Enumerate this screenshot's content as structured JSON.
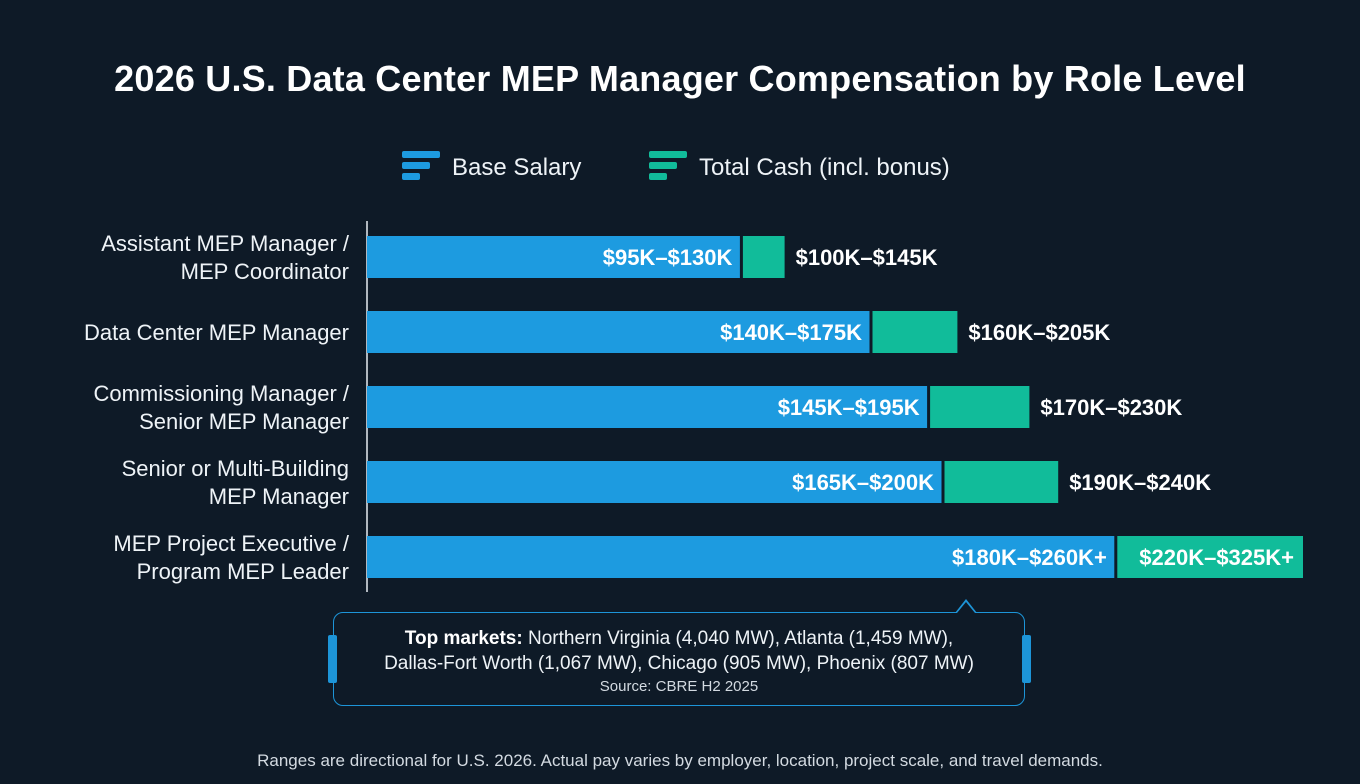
{
  "title": "2026 U.S. Data Center MEP Manager Compensation by Role Level",
  "colors": {
    "background": "#0e1a27",
    "base_salary": "#1d9be0",
    "total_cash": "#11bc9a",
    "box_border": "#1d95d8"
  },
  "legend": [
    {
      "label": "Base Salary",
      "icon": "bar-stack-icon",
      "color": "#1d9be0"
    },
    {
      "label": "Total Cash (incl. bonus)",
      "icon": "bar-stack-icon",
      "color": "#11bc9a"
    }
  ],
  "chart_data": {
    "type": "bar",
    "orientation": "horizontal",
    "unit": "USD thousands",
    "grid": false,
    "legend_placement": "top-center",
    "categories": [
      [
        "Assistant MEP Manager /",
        "MEP Coordinator"
      ],
      [
        "Data Center MEP Manager"
      ],
      [
        "Commissioning Manager /",
        "Senior MEP Manager"
      ],
      [
        "Senior or Multi-Building",
        "MEP Manager"
      ],
      [
        "MEP Project Executive /",
        "Program MEP Leader"
      ]
    ],
    "series": [
      {
        "name": "Base Salary",
        "ranges": [
          [
            95,
            130
          ],
          [
            140,
            175
          ],
          [
            145,
            195
          ],
          [
            165,
            200
          ],
          [
            180,
            260
          ]
        ],
        "labels": [
          "$95K–$130K",
          "$140K–$175K",
          "$145K–$195K",
          "$165K–$200K",
          "$180K–$260K+"
        ]
      },
      {
        "name": "Total Cash (incl. bonus)",
        "ranges": [
          [
            100,
            145
          ],
          [
            160,
            205
          ],
          [
            170,
            230
          ],
          [
            190,
            240
          ],
          [
            220,
            325
          ]
        ],
        "labels": [
          "$100K–$145K",
          "$160K–$205K",
          "$170K–$230K",
          "$190K–$240K",
          "$220K–$325K+"
        ]
      }
    ]
  },
  "markets": {
    "heading": "Top markets:",
    "line1": " Northern Virginia (4,040 MW), Atlanta (1,459 MW),",
    "line2": "Dallas-Fort Worth (1,067 MW), Chicago (905 MW), Phoenix (807 MW)",
    "source": "Source: CBRE H2 2025"
  },
  "footnote": "Ranges are directional for U.S. 2026. Actual pay varies by employer, location, project scale, and travel demands."
}
